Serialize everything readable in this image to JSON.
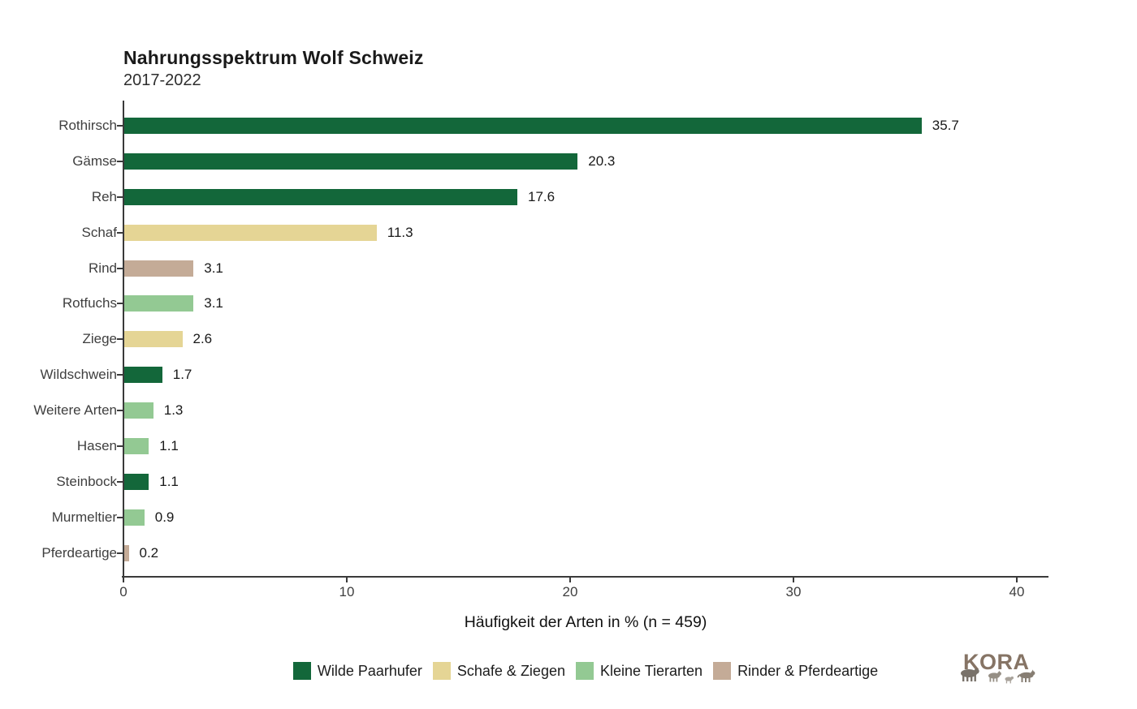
{
  "chart_data": {
    "type": "bar",
    "orientation": "horizontal",
    "title": "Nahrungsspektrum Wolf Schweiz",
    "subtitle": "2017-2022",
    "xlabel": "Häufigkeit der Arten in % (n = 459)",
    "sample_size_shown": "n = 459",
    "xlim": [
      0,
      40
    ],
    "xticks": [
      0,
      10,
      20,
      30,
      40
    ],
    "grid": false,
    "legend_position": "bottom",
    "categories": [
      "Rothirsch",
      "Gämse",
      "Reh",
      "Schaf",
      "Rind",
      "Rotfuchs",
      "Ziege",
      "Wildschwein",
      "Weitere Arten",
      "Hasen",
      "Steinbock",
      "Murmeltier",
      "Pferdeartige"
    ],
    "values": [
      35.7,
      20.3,
      17.6,
      11.3,
      3.1,
      3.1,
      2.6,
      1.7,
      1.3,
      1.1,
      1.1,
      0.9,
      0.2
    ],
    "bars": [
      {
        "category": "Rothirsch",
        "value": 35.7,
        "group": "wilde_paarhufer"
      },
      {
        "category": "Gämse",
        "value": 20.3,
        "group": "wilde_paarhufer"
      },
      {
        "category": "Reh",
        "value": 17.6,
        "group": "wilde_paarhufer"
      },
      {
        "category": "Schaf",
        "value": 11.3,
        "group": "schafe_ziegen"
      },
      {
        "category": "Rind",
        "value": 3.1,
        "group": "rinder_pferdeartige"
      },
      {
        "category": "Rotfuchs",
        "value": 3.1,
        "group": "kleine_tierarten"
      },
      {
        "category": "Ziege",
        "value": 2.6,
        "group": "schafe_ziegen"
      },
      {
        "category": "Wildschwein",
        "value": 1.7,
        "group": "wilde_paarhufer"
      },
      {
        "category": "Weitere Arten",
        "value": 1.3,
        "group": "kleine_tierarten"
      },
      {
        "category": "Hasen",
        "value": 1.1,
        "group": "kleine_tierarten"
      },
      {
        "category": "Steinbock",
        "value": 1.1,
        "group": "wilde_paarhufer"
      },
      {
        "category": "Murmeltier",
        "value": 0.9,
        "group": "kleine_tierarten"
      },
      {
        "category": "Pferdeartige",
        "value": 0.2,
        "group": "rinder_pferdeartige"
      }
    ],
    "group_colors": {
      "wilde_paarhufer": "#13673a",
      "schafe_ziegen": "#e5d595",
      "kleine_tierarten": "#93c993",
      "rinder_pferdeartige": "#c4ab97"
    },
    "legend": [
      {
        "label": "Wilde Paarhufer",
        "group": "wilde_paarhufer"
      },
      {
        "label": "Schafe & Ziegen",
        "group": "schafe_ziegen"
      },
      {
        "label": "Kleine Tierarten",
        "group": "kleine_tierarten"
      },
      {
        "label": "Rinder & Pferdeartige",
        "group": "rinder_pferdeartige"
      }
    ],
    "axis_color": "#3a3a3a",
    "text_color": "#1f1f1f"
  },
  "logo": {
    "text": "KORA"
  }
}
